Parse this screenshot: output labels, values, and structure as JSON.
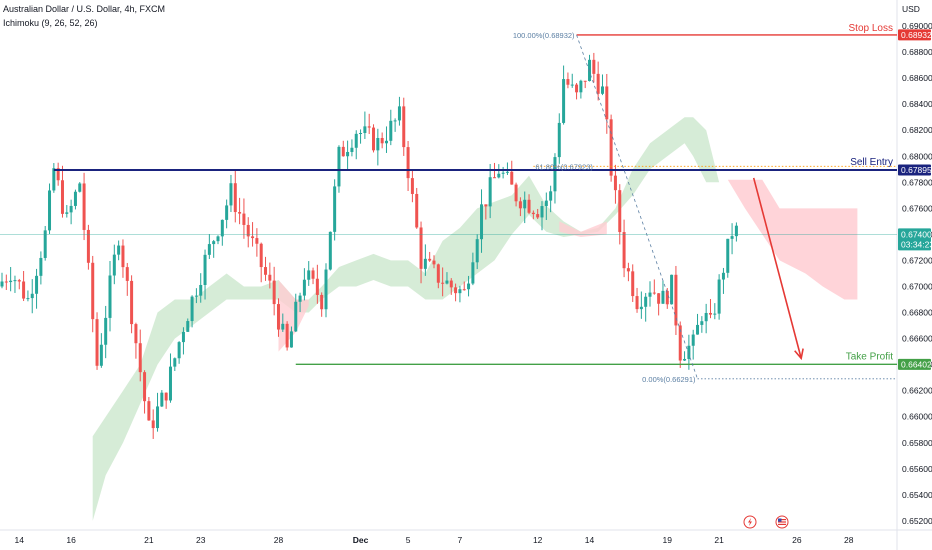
{
  "header": {
    "title": "Australian Dollar / U.S. Dollar, 4h, FXCM",
    "indicator": "Ichimoku (9, 26, 52, 26)"
  },
  "colors": {
    "up": "#26a69a",
    "down": "#ef5350",
    "cloud_bull": "#c8e6c9",
    "cloud_bear": "#ffcdd2",
    "stop_loss": "#e53935",
    "sell_entry": "#1a237e",
    "take_profit": "#43a047",
    "current": "#26a69a",
    "arrow": "#e53935"
  },
  "chart_data": {
    "type": "candlestick",
    "currency": "USD",
    "ylim": [
      0.6513,
      0.692
    ],
    "y_ticks": [
      0.652,
      0.654,
      0.656,
      0.658,
      0.66,
      0.662,
      0.664,
      0.666,
      0.668,
      0.67,
      0.672,
      0.674,
      0.676,
      0.678,
      0.68,
      0.682,
      0.684,
      0.686,
      0.688,
      0.69
    ],
    "y_tick_labels": [
      "0.65200",
      "0.65400",
      "0.65600",
      "0.65800",
      "0.66000",
      "0.66200",
      "0.66400",
      "0.66600",
      "0.66800",
      "0.67000",
      "0.67200",
      "0.67400",
      "0.67600",
      "0.67800",
      "0.68000",
      "0.68200",
      "0.68400",
      "0.68600",
      "0.68800",
      "0.69000"
    ],
    "x_ticks": [
      {
        "label": "14",
        "i": 4
      },
      {
        "label": "16",
        "i": 16
      },
      {
        "label": "21",
        "i": 34
      },
      {
        "label": "23",
        "i": 46
      },
      {
        "label": "28",
        "i": 64
      },
      {
        "label": "Dec",
        "i": 83
      },
      {
        "label": "5",
        "i": 94
      },
      {
        "label": "7",
        "i": 106
      },
      {
        "label": "12",
        "i": 124
      },
      {
        "label": "14",
        "i": 136
      },
      {
        "label": "19",
        "i": 154
      },
      {
        "label": "21",
        "i": 166
      },
      {
        "label": "26",
        "i": 184
      },
      {
        "label": "28",
        "i": 196
      }
    ],
    "candle_count": 171,
    "keypoints": [
      [
        0,
        0.67
      ],
      [
        3,
        0.6712
      ],
      [
        7,
        0.669
      ],
      [
        11,
        0.674
      ],
      [
        13,
        0.679
      ],
      [
        16,
        0.675
      ],
      [
        19,
        0.678
      ],
      [
        23,
        0.664
      ],
      [
        28,
        0.674
      ],
      [
        31,
        0.668
      ],
      [
        35,
        0.659
      ],
      [
        39,
        0.662
      ],
      [
        43,
        0.667
      ],
      [
        48,
        0.672
      ],
      [
        54,
        0.6772
      ],
      [
        58,
        0.674
      ],
      [
        63,
        0.67
      ],
      [
        67,
        0.665
      ],
      [
        71,
        0.671
      ],
      [
        75,
        0.669
      ],
      [
        79,
        0.68
      ],
      [
        83,
        0.682
      ],
      [
        88,
        0.681
      ],
      [
        93,
        0.683
      ],
      [
        95,
        0.679
      ],
      [
        98,
        0.672
      ],
      [
        101,
        0.671
      ],
      [
        105,
        0.67
      ],
      [
        108,
        0.6695
      ],
      [
        112,
        0.676
      ],
      [
        116,
        0.679
      ],
      [
        120,
        0.677
      ],
      [
        125,
        0.676
      ],
      [
        128,
        0.677
      ],
      [
        131,
        0.686
      ],
      [
        134,
        0.6845
      ],
      [
        137,
        0.687
      ],
      [
        140,
        0.685
      ],
      [
        142,
        0.679
      ],
      [
        145,
        0.672
      ],
      [
        148,
        0.669
      ],
      [
        151,
        0.67
      ],
      [
        154,
        0.669
      ],
      [
        156,
        0.67
      ],
      [
        158,
        0.665
      ],
      [
        161,
        0.6655
      ],
      [
        163,
        0.668
      ],
      [
        165,
        0.667
      ],
      [
        168,
        0.6715
      ],
      [
        170,
        0.6742
      ]
    ],
    "ichimoku_cloud": [
      [
        21,
        0.652,
        0.6585
      ],
      [
        24,
        0.6555,
        0.66
      ],
      [
        28,
        0.658,
        0.662
      ],
      [
        32,
        0.661,
        0.664
      ],
      [
        36,
        0.664,
        0.668
      ],
      [
        40,
        0.666,
        0.669
      ],
      [
        44,
        0.667,
        0.669
      ],
      [
        48,
        0.668,
        0.67
      ],
      [
        52,
        0.669,
        0.671
      ],
      [
        56,
        0.669,
        0.67
      ],
      [
        60,
        0.669,
        0.67
      ],
      [
        64,
        0.669,
        0.6705
      ],
      [
        68,
        0.668,
        0.669
      ],
      [
        71,
        0.668,
        0.669
      ],
      [
        74,
        0.669,
        0.67
      ],
      [
        78,
        0.67,
        0.6715
      ],
      [
        82,
        0.67,
        0.672
      ],
      [
        86,
        0.6705,
        0.6725
      ],
      [
        90,
        0.67,
        0.672
      ],
      [
        94,
        0.67,
        0.672
      ],
      [
        98,
        0.669,
        0.671
      ],
      [
        102,
        0.669,
        0.6735
      ],
      [
        106,
        0.67,
        0.6745
      ],
      [
        110,
        0.671,
        0.676
      ],
      [
        114,
        0.672,
        0.6765
      ],
      [
        118,
        0.674,
        0.677
      ],
      [
        122,
        0.6755,
        0.6785
      ],
      [
        126,
        0.6742,
        0.6762
      ],
      [
        130,
        0.6738,
        0.675
      ],
      [
        134,
        0.674,
        0.6742
      ],
      [
        138,
        0.6742,
        0.6745
      ],
      [
        142,
        0.6755,
        0.676
      ],
      [
        146,
        0.677,
        0.679
      ],
      [
        150,
        0.679,
        0.681
      ],
      [
        154,
        0.68,
        0.682
      ],
      [
        158,
        0.681,
        0.683
      ],
      [
        160,
        0.68,
        0.683
      ],
      [
        163,
        0.678,
        0.682
      ],
      [
        166,
        0.678,
        0.678
      ]
    ],
    "ichimoku_cloud_bear_future": [
      [
        168,
        0.6782,
        0.6782
      ],
      [
        172,
        0.6782,
        0.676
      ],
      [
        176,
        0.6782,
        0.674
      ],
      [
        180,
        0.676,
        0.672
      ],
      [
        186,
        0.676,
        0.671
      ],
      [
        190,
        0.676,
        0.67
      ],
      [
        195,
        0.676,
        0.669
      ],
      [
        198,
        0.676,
        0.669
      ]
    ],
    "levels": {
      "stop_loss": {
        "label": "Stop Loss",
        "value": 0.68932,
        "tag": "0.68932"
      },
      "sell_entry": {
        "label": "Sell Entry",
        "value": 0.67895,
        "tag": "0.67895"
      },
      "take_profit": {
        "label": "Take Profit",
        "value": 0.66402,
        "tag": "0.66402"
      },
      "current": {
        "value": 0.674,
        "tag": "0.67400",
        "countdown": "03:34:23"
      }
    },
    "fib": {
      "top_label": "100.00%(0.68932)",
      "mid_label": "61.80%(0.67923)",
      "bottom_label": "0.00%(0.66291)",
      "top_value": 0.68932,
      "mid_value": 0.67923,
      "bottom_value": 0.66291
    }
  }
}
